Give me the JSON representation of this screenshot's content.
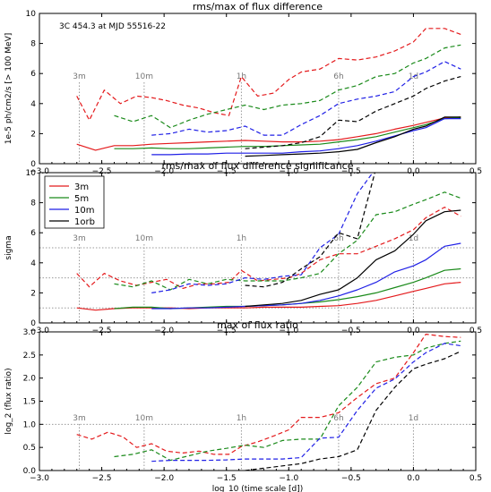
{
  "figure": {
    "x_ticks": [
      "−3.0",
      "−2.5",
      "−2.0",
      "−1.5",
      "−1.0",
      "−0.5",
      "0.0",
      "0.5"
    ],
    "x_label": "log_10 (time scale [d])",
    "legend": [
      "3m",
      "5m",
      "10m",
      "1orb"
    ],
    "colors": {
      "3m": "#e41a1c",
      "5m": "#1a8a1a",
      "10m": "#1f1fe6",
      "1orb": "#000000",
      "ref": "#999999"
    },
    "timescales": [
      {
        "label": "3m",
        "x": -2.68
      },
      {
        "label": "10m",
        "x": -2.16
      },
      {
        "label": "1h",
        "x": -1.38
      },
      {
        "label": "6h",
        "x": -0.6
      },
      {
        "label": "1d",
        "x": 0.0
      }
    ]
  },
  "chart_data": [
    {
      "type": "line",
      "title": "rms/max of flux difference",
      "annotation": "3C 454.3 at MJD 55516-22",
      "ylabel": "1e-5 ph/cm2/s [> 100 MeV]",
      "xlim": [
        -3.0,
        0.5
      ],
      "ylim": [
        0,
        10
      ],
      "yticks": [
        "0",
        "2",
        "4",
        "6",
        "8",
        "10"
      ],
      "series": [
        {
          "name": "3m",
          "style": "solid",
          "x": [
            -2.7,
            -2.55,
            -2.4,
            -2.25,
            -2.1,
            -1.95,
            -1.8,
            -1.65,
            -1.5,
            -1.35,
            -1.2,
            -1.05,
            -0.9,
            -0.75,
            -0.6,
            -0.45,
            -0.3,
            -0.15,
            0.0,
            0.1,
            0.25,
            0.38
          ],
          "y": [
            1.3,
            0.9,
            1.2,
            1.2,
            1.3,
            1.35,
            1.4,
            1.45,
            1.5,
            1.55,
            1.5,
            1.45,
            1.45,
            1.5,
            1.6,
            1.8,
            2.0,
            2.3,
            2.55,
            2.75,
            3.05,
            3.1
          ]
        },
        {
          "name": "3m",
          "style": "dashed",
          "x": [
            -2.7,
            -2.6,
            -2.48,
            -2.35,
            -2.22,
            -2.1,
            -1.98,
            -1.85,
            -1.72,
            -1.6,
            -1.48,
            -1.38,
            -1.25,
            -1.12,
            -1.0,
            -0.9,
            -0.75,
            -0.6,
            -0.45,
            -0.3,
            -0.15,
            0.0,
            0.1,
            0.25,
            0.38
          ],
          "y": [
            4.5,
            2.9,
            4.9,
            4.0,
            4.5,
            4.4,
            4.2,
            3.9,
            3.7,
            3.4,
            3.2,
            5.8,
            4.5,
            4.7,
            5.6,
            6.1,
            6.3,
            7.0,
            6.9,
            7.1,
            7.5,
            8.1,
            9.0,
            9.0,
            8.6
          ]
        },
        {
          "name": "5m",
          "style": "solid",
          "x": [
            -2.4,
            -2.25,
            -2.1,
            -1.95,
            -1.8,
            -1.65,
            -1.5,
            -1.35,
            -1.2,
            -1.05,
            -0.9,
            -0.75,
            -0.6,
            -0.45,
            -0.3,
            -0.15,
            0.0,
            0.1,
            0.25,
            0.38
          ],
          "y": [
            1.0,
            1.0,
            1.05,
            1.0,
            1.0,
            1.05,
            1.1,
            1.15,
            1.15,
            1.2,
            1.25,
            1.3,
            1.45,
            1.6,
            1.8,
            2.1,
            2.4,
            2.6,
            3.0,
            3.05
          ]
        },
        {
          "name": "5m",
          "style": "dashed",
          "x": [
            -2.4,
            -2.25,
            -2.1,
            -1.95,
            -1.8,
            -1.65,
            -1.5,
            -1.35,
            -1.2,
            -1.05,
            -0.9,
            -0.75,
            -0.6,
            -0.45,
            -0.3,
            -0.15,
            0.0,
            0.1,
            0.25,
            0.38
          ],
          "y": [
            3.2,
            2.8,
            3.2,
            2.4,
            2.9,
            3.3,
            3.6,
            3.9,
            3.6,
            3.9,
            4.0,
            4.2,
            4.9,
            5.2,
            5.8,
            6.0,
            6.7,
            7.0,
            7.7,
            7.9
          ]
        },
        {
          "name": "10m",
          "style": "solid",
          "x": [
            -2.1,
            -1.95,
            -1.8,
            -1.65,
            -1.5,
            -1.35,
            -1.2,
            -1.05,
            -0.9,
            -0.75,
            -0.6,
            -0.45,
            -0.3,
            -0.15,
            0.0,
            0.1,
            0.25,
            0.38
          ],
          "y": [
            0.6,
            0.6,
            0.65,
            0.65,
            0.7,
            0.7,
            0.7,
            0.7,
            0.8,
            0.85,
            1.0,
            1.2,
            1.5,
            1.85,
            2.2,
            2.4,
            3.0,
            3.0
          ]
        },
        {
          "name": "10m",
          "style": "dashed",
          "x": [
            -2.1,
            -1.95,
            -1.8,
            -1.65,
            -1.5,
            -1.35,
            -1.2,
            -1.05,
            -0.9,
            -0.75,
            -0.6,
            -0.45,
            -0.3,
            -0.15,
            0.0,
            0.1,
            0.25,
            0.38
          ],
          "y": [
            1.9,
            2.0,
            2.3,
            2.1,
            2.2,
            2.5,
            1.9,
            1.9,
            2.6,
            3.2,
            4.0,
            4.3,
            4.5,
            4.8,
            5.8,
            6.1,
            6.8,
            6.3
          ]
        },
        {
          "name": "1orb",
          "style": "solid",
          "x": [
            -1.35,
            -1.2,
            -1.05,
            -0.9,
            -0.75,
            -0.6,
            -0.45,
            -0.3,
            -0.15,
            0.0,
            0.1,
            0.25,
            0.38
          ],
          "y": [
            0.5,
            0.55,
            0.6,
            0.65,
            0.7,
            0.8,
            0.95,
            1.4,
            1.8,
            2.3,
            2.5,
            3.1,
            3.1
          ]
        },
        {
          "name": "1orb",
          "style": "dashed",
          "x": [
            -1.35,
            -1.2,
            -1.05,
            -0.9,
            -0.75,
            -0.6,
            -0.45,
            -0.3,
            -0.15,
            0.0,
            0.1,
            0.25,
            0.38
          ],
          "y": [
            1.0,
            1.1,
            1.2,
            1.4,
            1.8,
            2.9,
            2.8,
            3.5,
            4.0,
            4.5,
            5.0,
            5.5,
            5.8
          ]
        }
      ]
    },
    {
      "type": "line",
      "title": "rms/max of flux difference significance",
      "ylabel": "sigma",
      "xlim": [
        -3.0,
        0.5
      ],
      "ylim": [
        0,
        10
      ],
      "yticks": [
        "0",
        "2",
        "4",
        "6",
        "8",
        "10"
      ],
      "reference_y": [
        1,
        3,
        5
      ],
      "series": [
        {
          "name": "3m",
          "style": "solid",
          "x": [
            -2.7,
            -2.55,
            -2.4,
            -2.25,
            -2.1,
            -1.95,
            -1.8,
            -1.65,
            -1.5,
            -1.35,
            -1.2,
            -1.05,
            -0.9,
            -0.75,
            -0.6,
            -0.45,
            -0.3,
            -0.15,
            0.0,
            0.1,
            0.25,
            0.38
          ],
          "y": [
            1.0,
            0.85,
            0.95,
            1.0,
            1.0,
            1.0,
            0.95,
            1.0,
            1.0,
            1.0,
            1.05,
            1.05,
            1.05,
            1.1,
            1.15,
            1.3,
            1.5,
            1.8,
            2.1,
            2.3,
            2.6,
            2.7
          ]
        },
        {
          "name": "3m",
          "style": "dashed",
          "x": [
            -2.7,
            -2.6,
            -2.48,
            -2.35,
            -2.22,
            -2.1,
            -1.98,
            -1.85,
            -1.72,
            -1.6,
            -1.48,
            -1.38,
            -1.25,
            -1.12,
            -1.0,
            -0.9,
            -0.75,
            -0.6,
            -0.45,
            -0.3,
            -0.15,
            0.0,
            0.1,
            0.25,
            0.38
          ],
          "y": [
            3.3,
            2.4,
            3.3,
            2.8,
            2.5,
            2.7,
            2.9,
            2.3,
            2.6,
            2.6,
            2.7,
            3.5,
            2.8,
            2.9,
            3.0,
            3.3,
            4.2,
            4.6,
            4.6,
            5.1,
            5.6,
            6.2,
            7.0,
            7.7,
            7.1
          ]
        },
        {
          "name": "5m",
          "style": "solid",
          "x": [
            -2.4,
            -2.25,
            -2.1,
            -1.95,
            -1.8,
            -1.65,
            -1.5,
            -1.35,
            -1.2,
            -1.05,
            -0.9,
            -0.75,
            -0.6,
            -0.45,
            -0.3,
            -0.15,
            0.0,
            0.1,
            0.25,
            0.38
          ],
          "y": [
            0.95,
            1.05,
            1.05,
            0.95,
            1.0,
            1.05,
            1.1,
            1.1,
            1.15,
            1.2,
            1.3,
            1.4,
            1.55,
            1.75,
            2.0,
            2.35,
            2.7,
            3.0,
            3.5,
            3.6
          ]
        },
        {
          "name": "5m",
          "style": "dashed",
          "x": [
            -2.4,
            -2.25,
            -2.1,
            -1.95,
            -1.8,
            -1.65,
            -1.5,
            -1.35,
            -1.2,
            -1.05,
            -0.9,
            -0.75,
            -0.6,
            -0.45,
            -0.3,
            -0.15,
            0.0,
            0.1,
            0.25,
            0.38
          ],
          "y": [
            2.6,
            2.4,
            2.8,
            2.2,
            2.9,
            2.6,
            2.9,
            2.8,
            2.8,
            2.8,
            3.0,
            3.3,
            4.6,
            5.5,
            7.2,
            7.4,
            7.9,
            8.2,
            8.7,
            8.3
          ]
        },
        {
          "name": "10m",
          "style": "solid",
          "x": [
            -2.1,
            -1.95,
            -1.8,
            -1.65,
            -1.5,
            -1.35,
            -1.2,
            -1.05,
            -0.9,
            -0.75,
            -0.6,
            -0.45,
            -0.3,
            -0.15,
            0.0,
            0.1,
            0.25,
            0.38
          ],
          "y": [
            0.95,
            0.95,
            1.0,
            1.0,
            1.05,
            1.1,
            1.15,
            1.2,
            1.3,
            1.5,
            1.8,
            2.2,
            2.7,
            3.4,
            3.8,
            4.2,
            5.1,
            5.3
          ]
        },
        {
          "name": "10m",
          "style": "dashed",
          "x": [
            -2.1,
            -1.95,
            -1.8,
            -1.65,
            -1.5,
            -1.35,
            -1.2,
            -1.05,
            -0.9,
            -0.75,
            -0.6,
            -0.45,
            -0.3,
            -0.15,
            0.0,
            0.1,
            0.25,
            0.38
          ],
          "y": [
            2.0,
            2.2,
            2.6,
            2.5,
            2.6,
            3.0,
            2.9,
            3.1,
            3.2,
            5.0,
            5.9,
            8.6,
            10.3,
            10.5,
            10.5,
            10.5,
            10.5,
            10.5
          ]
        },
        {
          "name": "1orb",
          "style": "solid",
          "x": [
            -1.35,
            -1.2,
            -1.05,
            -0.9,
            -0.75,
            -0.6,
            -0.45,
            -0.3,
            -0.15,
            0.0,
            0.1,
            0.25,
            0.38
          ],
          "y": [
            1.1,
            1.2,
            1.3,
            1.5,
            1.9,
            2.2,
            3.0,
            4.2,
            4.8,
            5.9,
            6.8,
            7.4,
            7.5
          ]
        },
        {
          "name": "1orb",
          "style": "dashed",
          "x": [
            -1.35,
            -1.2,
            -1.05,
            -0.9,
            -0.75,
            -0.6,
            -0.45,
            -0.3,
            -0.15,
            0.0,
            0.1,
            0.25,
            0.38
          ],
          "y": [
            2.5,
            2.4,
            2.7,
            3.6,
            4.4,
            6.0,
            5.6,
            10.3,
            10.5,
            10.5,
            10.5,
            10.5,
            10.5
          ]
        }
      ]
    },
    {
      "type": "line",
      "title": "max of flux ratio",
      "ylabel": "log_2 (flux ratio)",
      "xlim": [
        -3.0,
        0.5
      ],
      "ylim": [
        0,
        3.0
      ],
      "yticks": [
        "0.0",
        "0.5",
        "1.0",
        "1.5",
        "2.0",
        "2.5",
        "3.0"
      ],
      "reference_y": [
        1.0
      ],
      "series": [
        {
          "name": "3m",
          "style": "dashed",
          "x": [
            -2.7,
            -2.58,
            -2.45,
            -2.33,
            -2.22,
            -2.1,
            -1.98,
            -1.85,
            -1.72,
            -1.6,
            -1.48,
            -1.38,
            -1.25,
            -1.12,
            -1.0,
            -0.9,
            -0.75,
            -0.6,
            -0.45,
            -0.3,
            -0.15,
            0.0,
            0.1,
            0.25,
            0.38
          ],
          "y": [
            0.78,
            0.68,
            0.83,
            0.73,
            0.5,
            0.58,
            0.42,
            0.38,
            0.42,
            0.35,
            0.35,
            0.52,
            0.62,
            0.75,
            0.88,
            1.15,
            1.15,
            1.25,
            1.58,
            1.88,
            2.0,
            2.55,
            2.95,
            2.9,
            2.88
          ]
        },
        {
          "name": "5m",
          "style": "dashed",
          "x": [
            -2.4,
            -2.25,
            -2.1,
            -1.95,
            -1.8,
            -1.65,
            -1.5,
            -1.35,
            -1.2,
            -1.05,
            -0.9,
            -0.75,
            -0.6,
            -0.45,
            -0.3,
            -0.15,
            0.0,
            0.1,
            0.25,
            0.38
          ],
          "y": [
            0.3,
            0.35,
            0.45,
            0.22,
            0.32,
            0.42,
            0.48,
            0.55,
            0.5,
            0.65,
            0.68,
            0.68,
            1.4,
            1.8,
            2.35,
            2.45,
            2.5,
            2.65,
            2.75,
            2.8
          ]
        },
        {
          "name": "10m",
          "style": "dashed",
          "x": [
            -2.1,
            -1.95,
            -1.8,
            -1.65,
            -1.5,
            -1.35,
            -1.2,
            -1.05,
            -0.9,
            -0.75,
            -0.6,
            -0.45,
            -0.3,
            -0.15,
            0.0,
            0.1,
            0.25,
            0.38
          ],
          "y": [
            0.2,
            0.22,
            0.22,
            0.22,
            0.23,
            0.25,
            0.25,
            0.25,
            0.28,
            0.7,
            0.72,
            1.3,
            1.78,
            1.98,
            2.35,
            2.55,
            2.75,
            2.7
          ]
        },
        {
          "name": "1orb",
          "style": "dashed",
          "x": [
            -1.35,
            -1.2,
            -1.05,
            -0.9,
            -0.75,
            -0.6,
            -0.45,
            -0.3,
            -0.15,
            0.0,
            0.1,
            0.25,
            0.38
          ],
          "y": [
            0.0,
            0.05,
            0.1,
            0.15,
            0.25,
            0.3,
            0.45,
            1.3,
            1.8,
            2.2,
            2.3,
            2.42,
            2.58
          ]
        }
      ]
    }
  ]
}
